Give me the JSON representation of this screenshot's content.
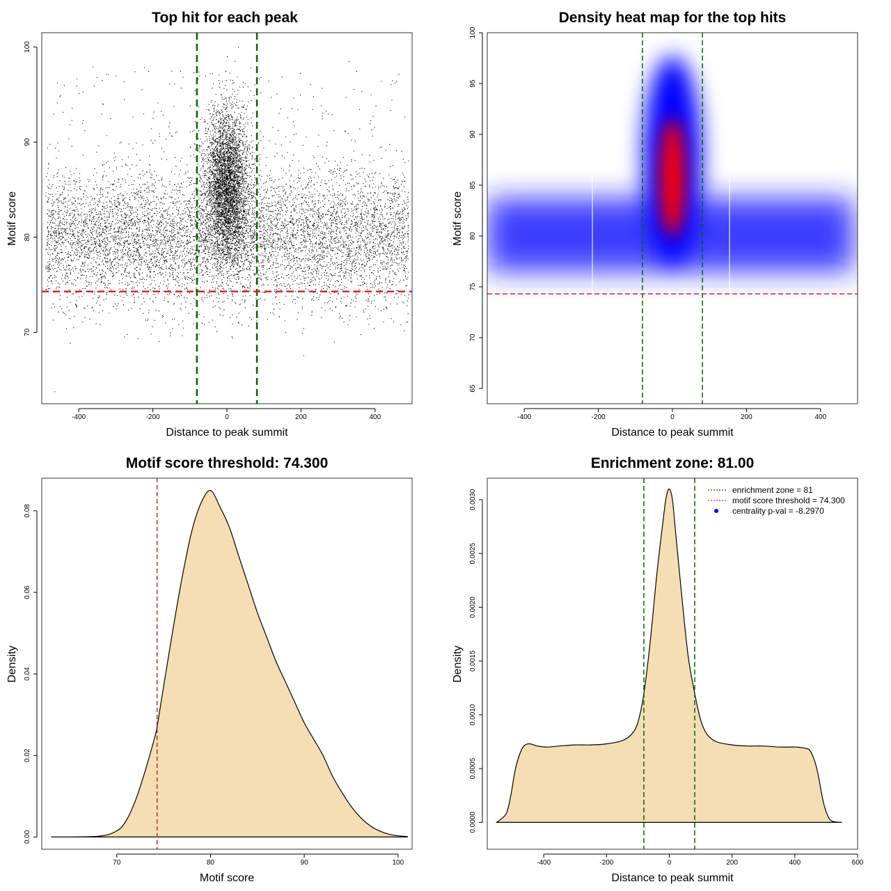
{
  "chart_data": [
    {
      "type": "scatter",
      "title": "Top hit for each peak",
      "xlabel": "Distance to peak summit",
      "ylabel": "Motif score",
      "xlim": [
        -500,
        500
      ],
      "ylim": [
        62.5,
        101.5
      ],
      "xticks": [
        -400,
        -200,
        0,
        200,
        400
      ],
      "yticks": [
        70,
        80,
        90,
        100
      ],
      "x_tick_labels": [
        "-400",
        "-200",
        "0",
        "200",
        "400"
      ],
      "y_tick_labels": [
        "70",
        "80",
        "90",
        "100"
      ],
      "vlines": [
        -81,
        81
      ],
      "hline": 74.3,
      "vline_color": "#006400",
      "hline_color": "#d62728",
      "grid": false,
      "sample_points": [
        {
          "x": -466,
          "y": 63.8
        },
        {
          "x": 206,
          "y": 67.6
        },
        {
          "x": -440,
          "y": 96
        },
        {
          "x": 329,
          "y": 98.5
        },
        {
          "x": 30,
          "y": 100
        },
        {
          "x": -150,
          "y": 97.5
        },
        {
          "x": -300,
          "y": 97
        },
        {
          "x": 446,
          "y": 96.5
        },
        {
          "x": 0,
          "y": 88
        },
        {
          "x": -300,
          "y": 80
        },
        {
          "x": 300,
          "y": 79
        }
      ]
    },
    {
      "type": "heatmap",
      "title": "Density heat map for the top hits",
      "xlabel": "Distance to peak summit",
      "ylabel": "Motif score",
      "xlim": [
        -500,
        500
      ],
      "ylim": [
        63.5,
        100
      ],
      "xticks": [
        -400,
        -200,
        0,
        200,
        400
      ],
      "yticks": [
        65,
        70,
        75,
        80,
        85,
        90,
        95,
        100
      ],
      "x_tick_labels": [
        "-400",
        "-200",
        "0",
        "200",
        "400"
      ],
      "y_tick_labels": [
        "65",
        "70",
        "75",
        "80",
        "85",
        "90",
        "95",
        "100"
      ],
      "vlines": [
        -81,
        81
      ],
      "hline": 74.3,
      "colors": [
        "#ffffff",
        "#0000ff",
        "#ff0000"
      ],
      "background_band_center": 79.5,
      "central_peak_center": 86,
      "grid": false
    },
    {
      "type": "area",
      "title": "Motif score threshold: 74.300",
      "xlabel": "Motif score",
      "ylabel": "Density",
      "xlim": [
        62,
        101.5
      ],
      "ylim": [
        -0.003,
        0.088
      ],
      "xticks": [
        70,
        80,
        90,
        100
      ],
      "yticks": [
        0,
        0.02,
        0.04,
        0.06,
        0.08
      ],
      "x_tick_labels": [
        "70",
        "80",
        "90",
        "100"
      ],
      "y_tick_labels": [
        "0.00",
        "0.02",
        "0.04",
        "0.06",
        "0.08"
      ],
      "x": [
        63,
        68,
        70,
        71,
        72,
        73,
        74,
        74.3,
        75,
        76,
        77,
        78,
        79,
        80,
        81,
        82,
        83,
        84,
        85,
        86,
        87,
        88,
        89,
        90,
        91,
        92,
        93,
        94,
        95,
        96,
        97,
        98,
        99,
        100,
        101
      ],
      "values": [
        0,
        0.0002,
        0.0015,
        0.004,
        0.009,
        0.016,
        0.024,
        0.027,
        0.037,
        0.051,
        0.064,
        0.075,
        0.082,
        0.085,
        0.081,
        0.076,
        0.069,
        0.062,
        0.055,
        0.049,
        0.043,
        0.038,
        0.033,
        0.028,
        0.024,
        0.02,
        0.015,
        0.011,
        0.0075,
        0.0048,
        0.0028,
        0.0015,
        0.0007,
        0.0003,
        0.0001
      ],
      "fill": "#f5deb3",
      "vline": 74.3,
      "vline_color": "#b22222",
      "grid": false
    },
    {
      "type": "area",
      "title": "Enrichment zone: 81.00",
      "xlabel": "Distance to peak summit",
      "ylabel": "Density",
      "xlim": [
        -580,
        600
      ],
      "ylim": [
        -0.00025,
        0.0032
      ],
      "xticks": [
        -400,
        -200,
        0,
        200,
        400,
        600
      ],
      "yticks": [
        0,
        0.0005,
        0.001,
        0.0015,
        0.002,
        0.0025,
        0.003
      ],
      "x_tick_labels": [
        "-400",
        "-200",
        "0",
        "200",
        "400",
        "600"
      ],
      "y_tick_labels": [
        "0.0000",
        "0.0005",
        "0.0010",
        "0.0015",
        "0.0020",
        "0.0025",
        "0.0030"
      ],
      "x": [
        -550,
        -520,
        -505,
        -490,
        -470,
        -450,
        -420,
        -390,
        -350,
        -300,
        -250,
        -200,
        -150,
        -120,
        -100,
        -81,
        -60,
        -40,
        -20,
        -10,
        0,
        10,
        20,
        40,
        60,
        81,
        100,
        120,
        150,
        200,
        250,
        300,
        350,
        400,
        430,
        450,
        470,
        490,
        505,
        520,
        550
      ],
      "values": [
        0,
        8e-05,
        0.00025,
        0.0005,
        0.00068,
        0.00073,
        0.00071,
        0.0007,
        0.00071,
        0.00072,
        0.00072,
        0.00073,
        0.00076,
        0.00082,
        0.00093,
        0.0012,
        0.0017,
        0.0023,
        0.0028,
        0.00302,
        0.0031,
        0.003,
        0.0027,
        0.0021,
        0.00155,
        0.0012,
        0.00095,
        0.00082,
        0.00075,
        0.00072,
        0.00071,
        0.00071,
        0.0007,
        0.0007,
        0.00069,
        0.00066,
        0.0005,
        0.0002,
        6e-05,
        1e-05,
        0
      ],
      "fill": "#f5deb3",
      "vlines": [
        -81,
        81
      ],
      "vline_color": "#006400",
      "legend": {
        "placement": "top-right",
        "items": [
          {
            "label": "enrichment zone = 81",
            "color": "#006400",
            "marker": "dotted-line"
          },
          {
            "label": "motif score threshold = 74.300",
            "color": "#d62728",
            "marker": "dotted-line"
          },
          {
            "label": "centrality p-val = -8.2970",
            "color": "#0000ff",
            "marker": "dot"
          }
        ]
      },
      "grid": false
    }
  ]
}
